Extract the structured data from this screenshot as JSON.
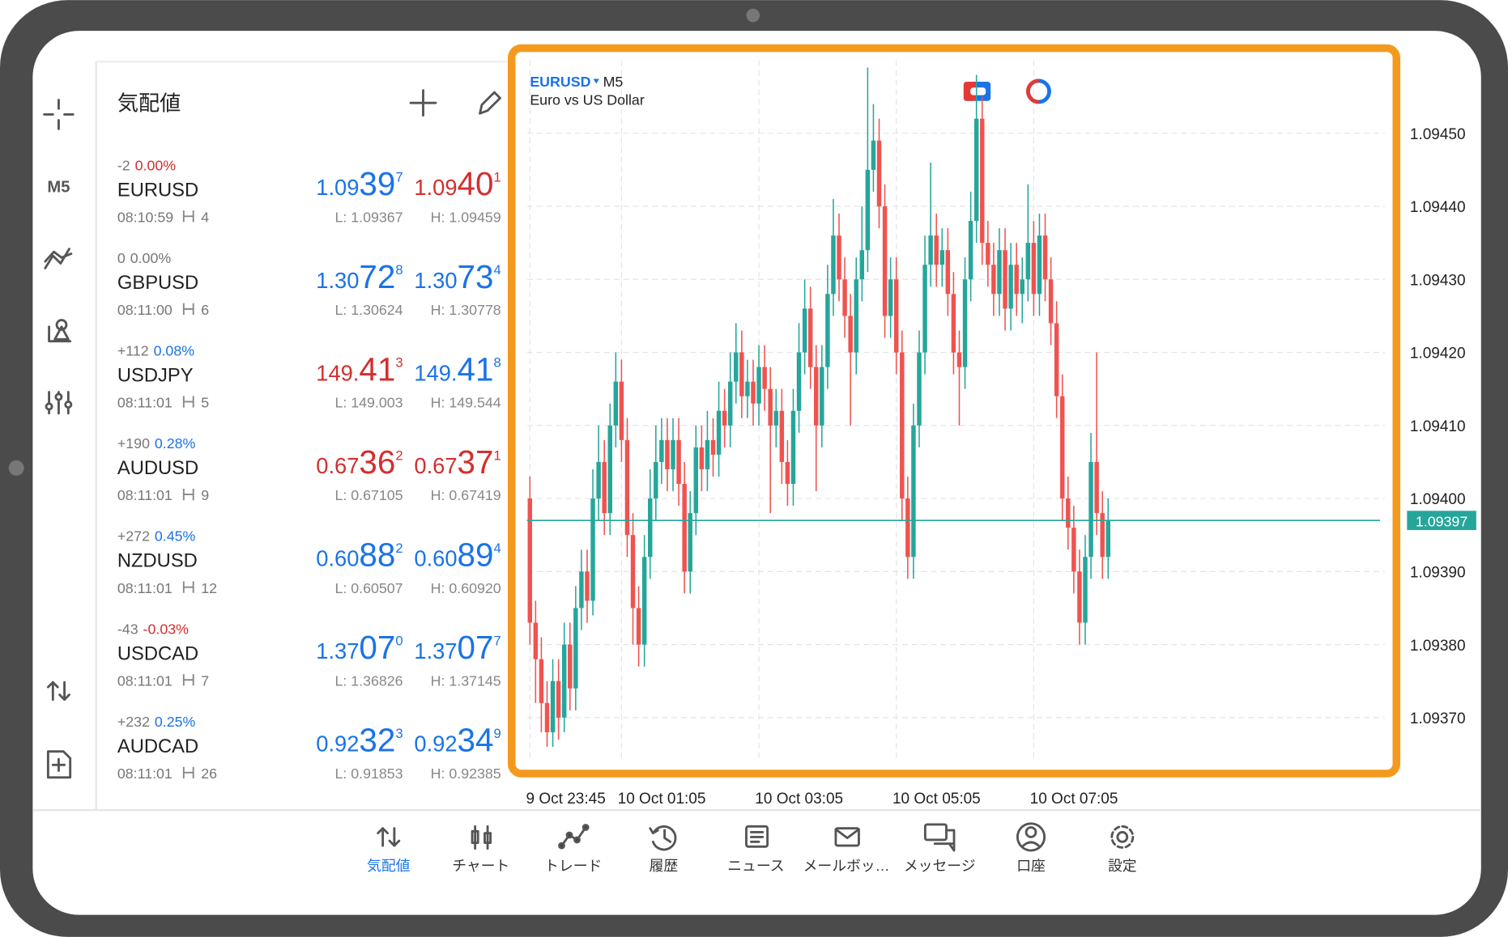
{
  "sidebar": {
    "timeframe": "M5"
  },
  "quotes": {
    "title": "気配値",
    "rows": [
      {
        "change": "-2",
        "change_pct": "0.00%",
        "pct_color": "#d32f2f",
        "symbol": "EURUSD",
        "time": "08:10:59",
        "spread": "4",
        "bid": {
          "prefix": "1.09",
          "big": "39",
          "sup": "7",
          "color": "#1a73e8"
        },
        "ask": {
          "prefix": "1.09",
          "big": "40",
          "sup": "1",
          "color": "#d32f2f"
        },
        "low": "L: 1.09367",
        "high": "H: 1.09459"
      },
      {
        "change": "0",
        "change_pct": "0.00%",
        "pct_color": "#777777",
        "symbol": "GBPUSD",
        "time": "08:11:00",
        "spread": "6",
        "bid": {
          "prefix": "1.30",
          "big": "72",
          "sup": "8",
          "color": "#1a73e8"
        },
        "ask": {
          "prefix": "1.30",
          "big": "73",
          "sup": "4",
          "color": "#1a73e8"
        },
        "low": "L: 1.30624",
        "high": "H: 1.30778"
      },
      {
        "change": "+112",
        "change_pct": "0.08%",
        "pct_color": "#1a73e8",
        "symbol": "USDJPY",
        "time": "08:11:01",
        "spread": "5",
        "bid": {
          "prefix": "149.",
          "big": "41",
          "sup": "3",
          "color": "#d32f2f"
        },
        "ask": {
          "prefix": "149.",
          "big": "41",
          "sup": "8",
          "color": "#1a73e8"
        },
        "low": "L: 149.003",
        "high": "H: 149.544"
      },
      {
        "change": "+190",
        "change_pct": "0.28%",
        "pct_color": "#1a73e8",
        "symbol": "AUDUSD",
        "time": "08:11:01",
        "spread": "9",
        "bid": {
          "prefix": "0.67",
          "big": "36",
          "sup": "2",
          "color": "#d32f2f"
        },
        "ask": {
          "prefix": "0.67",
          "big": "37",
          "sup": "1",
          "color": "#d32f2f"
        },
        "low": "L: 0.67105",
        "high": "H: 0.67419"
      },
      {
        "change": "+272",
        "change_pct": "0.45%",
        "pct_color": "#1a73e8",
        "symbol": "NZDUSD",
        "time": "08:11:01",
        "spread": "12",
        "bid": {
          "prefix": "0.60",
          "big": "88",
          "sup": "2",
          "color": "#1a73e8"
        },
        "ask": {
          "prefix": "0.60",
          "big": "89",
          "sup": "4",
          "color": "#1a73e8"
        },
        "low": "L: 0.60507",
        "high": "H: 0.60920"
      },
      {
        "change": "-43",
        "change_pct": "-0.03%",
        "pct_color": "#d32f2f",
        "symbol": "USDCAD",
        "time": "08:11:01",
        "spread": "7",
        "bid": {
          "prefix": "1.37",
          "big": "07",
          "sup": "0",
          "color": "#1a73e8"
        },
        "ask": {
          "prefix": "1.37",
          "big": "07",
          "sup": "7",
          "color": "#1a73e8"
        },
        "low": "L: 1.36826",
        "high": "H: 1.37145"
      },
      {
        "change": "+232",
        "change_pct": "0.25%",
        "pct_color": "#1a73e8",
        "symbol": "AUDCAD",
        "time": "08:11:01",
        "spread": "26",
        "bid": {
          "prefix": "0.92",
          "big": "32",
          "sup": "3",
          "color": "#1a73e8"
        },
        "ask": {
          "prefix": "0.92",
          "big": "34",
          "sup": "9",
          "color": "#1a73e8"
        },
        "low": "L: 0.91853",
        "high": "H: 0.92385"
      }
    ]
  },
  "chart_data": {
    "type": "candlestick",
    "symbol": "EURUSD",
    "timeframe": "M5",
    "subtitle": "Euro vs US Dollar",
    "up_color": "#26a69a",
    "down_color": "#ef5350",
    "open": [
      1.094,
      1.09383,
      1.09378,
      1.09372,
      1.09368,
      1.09375,
      1.0937,
      1.0938,
      1.09374,
      1.09385,
      1.0939,
      1.09386,
      1.094,
      1.09405,
      1.09398,
      1.0941,
      1.09416,
      1.09408,
      1.09395,
      1.09385,
      1.0938,
      1.09392,
      1.094,
      1.09405,
      1.09408,
      1.09404,
      1.09408,
      1.09402,
      1.0939,
      1.09398,
      1.09407,
      1.09404,
      1.09408,
      1.09406,
      1.09412,
      1.0941,
      1.09416,
      1.0942,
      1.09414,
      1.09416,
      1.09413,
      1.09418,
      1.09415,
      1.0941,
      1.09412,
      1.09405,
      1.09402,
      1.09412,
      1.0942,
      1.09426,
      1.09418,
      1.0941,
      1.09418,
      1.09428,
      1.09436,
      1.0943,
      1.09425,
      1.0942,
      1.0943,
      1.09434,
      1.09445,
      1.09449,
      1.0944,
      1.09425,
      1.0943,
      1.0942,
      1.094,
      1.09392,
      1.0941,
      1.0942,
      1.09432,
      1.09436,
      1.09432,
      1.09434,
      1.09428,
      1.0942,
      1.09418,
      1.0943,
      1.09438,
      1.09452,
      1.09435,
      1.09432,
      1.09428,
      1.09434,
      1.09426,
      1.09432,
      1.09428,
      1.0943,
      1.09435,
      1.09428,
      1.09436,
      1.0943,
      1.09424,
      1.09414,
      1.094,
      1.09396,
      1.0939,
      1.09383,
      1.09392,
      1.09405,
      1.09398,
      1.09392
    ],
    "high": [
      1.09403,
      1.09386,
      1.09381,
      1.09375,
      1.09378,
      1.09378,
      1.09383,
      1.09383,
      1.09388,
      1.09393,
      1.09393,
      1.09404,
      1.0941,
      1.09408,
      1.09413,
      1.0942,
      1.09419,
      1.09411,
      1.09398,
      1.09388,
      1.09395,
      1.09404,
      1.0941,
      1.09411,
      1.09411,
      1.09411,
      1.09411,
      1.09405,
      1.09401,
      1.0941,
      1.0941,
      1.09412,
      1.09411,
      1.09416,
      1.09415,
      1.0942,
      1.09424,
      1.09423,
      1.09419,
      1.09419,
      1.09421,
      1.09421,
      1.09418,
      1.09415,
      1.09415,
      1.09408,
      1.09415,
      1.09424,
      1.0943,
      1.09429,
      1.09421,
      1.09421,
      1.09432,
      1.09441,
      1.09439,
      1.09433,
      1.09428,
      1.09433,
      1.0944,
      1.09459,
      1.09454,
      1.09452,
      1.09443,
      1.09433,
      1.09433,
      1.09423,
      1.09403,
      1.09413,
      1.09423,
      1.09436,
      1.09446,
      1.09439,
      1.09437,
      1.09437,
      1.09431,
      1.09423,
      1.09433,
      1.09442,
      1.09458,
      1.09455,
      1.09438,
      1.09435,
      1.09437,
      1.09437,
      1.09435,
      1.09435,
      1.09433,
      1.09443,
      1.09438,
      1.09439,
      1.09439,
      1.09433,
      1.09427,
      1.09417,
      1.09403,
      1.09399,
      1.09393,
      1.09395,
      1.09409,
      1.0942,
      1.09401,
      1.094
    ],
    "low": [
      1.0938,
      1.09372,
      1.09368,
      1.09366,
      1.09366,
      1.09367,
      1.09368,
      1.09371,
      1.09371,
      1.09382,
      1.09383,
      1.09384,
      1.09397,
      1.09395,
      1.09395,
      1.09407,
      1.09405,
      1.09392,
      1.0938,
      1.09377,
      1.09377,
      1.09389,
      1.09397,
      1.09402,
      1.09401,
      1.09401,
      1.09399,
      1.09387,
      1.09387,
      1.09395,
      1.09401,
      1.09401,
      1.09403,
      1.09403,
      1.09407,
      1.09407,
      1.09413,
      1.09411,
      1.09411,
      1.0941,
      1.0941,
      1.09412,
      1.09398,
      1.09407,
      1.09402,
      1.09399,
      1.09399,
      1.09409,
      1.09417,
      1.09415,
      1.09401,
      1.09407,
      1.09415,
      1.09425,
      1.09427,
      1.09422,
      1.0941,
      1.09417,
      1.09427,
      1.09431,
      1.09442,
      1.09437,
      1.09422,
      1.09422,
      1.09417,
      1.09397,
      1.09389,
      1.09389,
      1.09407,
      1.09417,
      1.09429,
      1.09429,
      1.09429,
      1.09425,
      1.09417,
      1.0941,
      1.09415,
      1.09427,
      1.09435,
      1.09432,
      1.09429,
      1.09425,
      1.09425,
      1.09423,
      1.09423,
      1.09425,
      1.09424,
      1.09427,
      1.09425,
      1.09425,
      1.09427,
      1.09421,
      1.09411,
      1.09397,
      1.09393,
      1.09387,
      1.0938,
      1.0938,
      1.09389,
      1.09395,
      1.09389,
      1.09389
    ],
    "close": [
      1.09383,
      1.09378,
      1.09372,
      1.09368,
      1.09375,
      1.0937,
      1.0938,
      1.09374,
      1.09385,
      1.0939,
      1.09386,
      1.094,
      1.09405,
      1.09398,
      1.0941,
      1.09416,
      1.09408,
      1.09395,
      1.09385,
      1.0938,
      1.09392,
      1.094,
      1.09405,
      1.09408,
      1.09404,
      1.09408,
      1.09402,
      1.0939,
      1.09398,
      1.09407,
      1.09404,
      1.09408,
      1.09406,
      1.09412,
      1.0941,
      1.09416,
      1.0942,
      1.09414,
      1.09416,
      1.09413,
      1.09418,
      1.09415,
      1.0941,
      1.09412,
      1.09405,
      1.09402,
      1.09412,
      1.0942,
      1.09426,
      1.09418,
      1.0941,
      1.09418,
      1.09428,
      1.09436,
      1.0943,
      1.09425,
      1.0942,
      1.0943,
      1.09434,
      1.09445,
      1.09449,
      1.0944,
      1.09425,
      1.0943,
      1.0942,
      1.094,
      1.09392,
      1.0941,
      1.0942,
      1.09432,
      1.09436,
      1.09432,
      1.09434,
      1.09428,
      1.0942,
      1.09418,
      1.0943,
      1.09438,
      1.09452,
      1.09435,
      1.09432,
      1.09428,
      1.09434,
      1.09426,
      1.09432,
      1.09428,
      1.0943,
      1.09435,
      1.09428,
      1.09436,
      1.0943,
      1.09424,
      1.09414,
      1.094,
      1.09396,
      1.0939,
      1.09383,
      1.09392,
      1.09405,
      1.09398,
      1.09392,
      1.09397
    ],
    "xlim": [
      -0.5,
      148.5
    ],
    "xticks": [
      {
        "value": 0,
        "label": "9 Oct 23:45"
      },
      {
        "value": 16,
        "label": "10 Oct 01:05"
      },
      {
        "value": 40,
        "label": "10 Oct 03:05"
      },
      {
        "value": 64,
        "label": "10 Oct 05:05"
      },
      {
        "value": 88,
        "label": "10 Oct 07:05"
      }
    ],
    "ylim": [
      1.09363,
      1.09461
    ],
    "yticks": [
      {
        "value": 1.0937,
        "label": "1.09370"
      },
      {
        "value": 1.0938,
        "label": "1.09380"
      },
      {
        "value": 1.0939,
        "label": "1.09390"
      },
      {
        "value": 1.094,
        "label": "1.09400"
      },
      {
        "value": 1.0941,
        "label": "1.09410"
      },
      {
        "value": 1.0942,
        "label": "1.09420"
      },
      {
        "value": 1.0943,
        "label": "1.09430"
      },
      {
        "value": 1.0944,
        "label": "1.09440"
      },
      {
        "value": 1.0945,
        "label": "1.09450"
      }
    ],
    "grid": true,
    "current_price": 1.09397,
    "current_label": "1.09397",
    "current_color": "#26a69a"
  },
  "nav": {
    "active": 0,
    "items": [
      "気配値",
      "チャート",
      "トレード",
      "履歴",
      "ニュース",
      "メールボッ…",
      "メッセージ",
      "口座",
      "設定"
    ]
  }
}
